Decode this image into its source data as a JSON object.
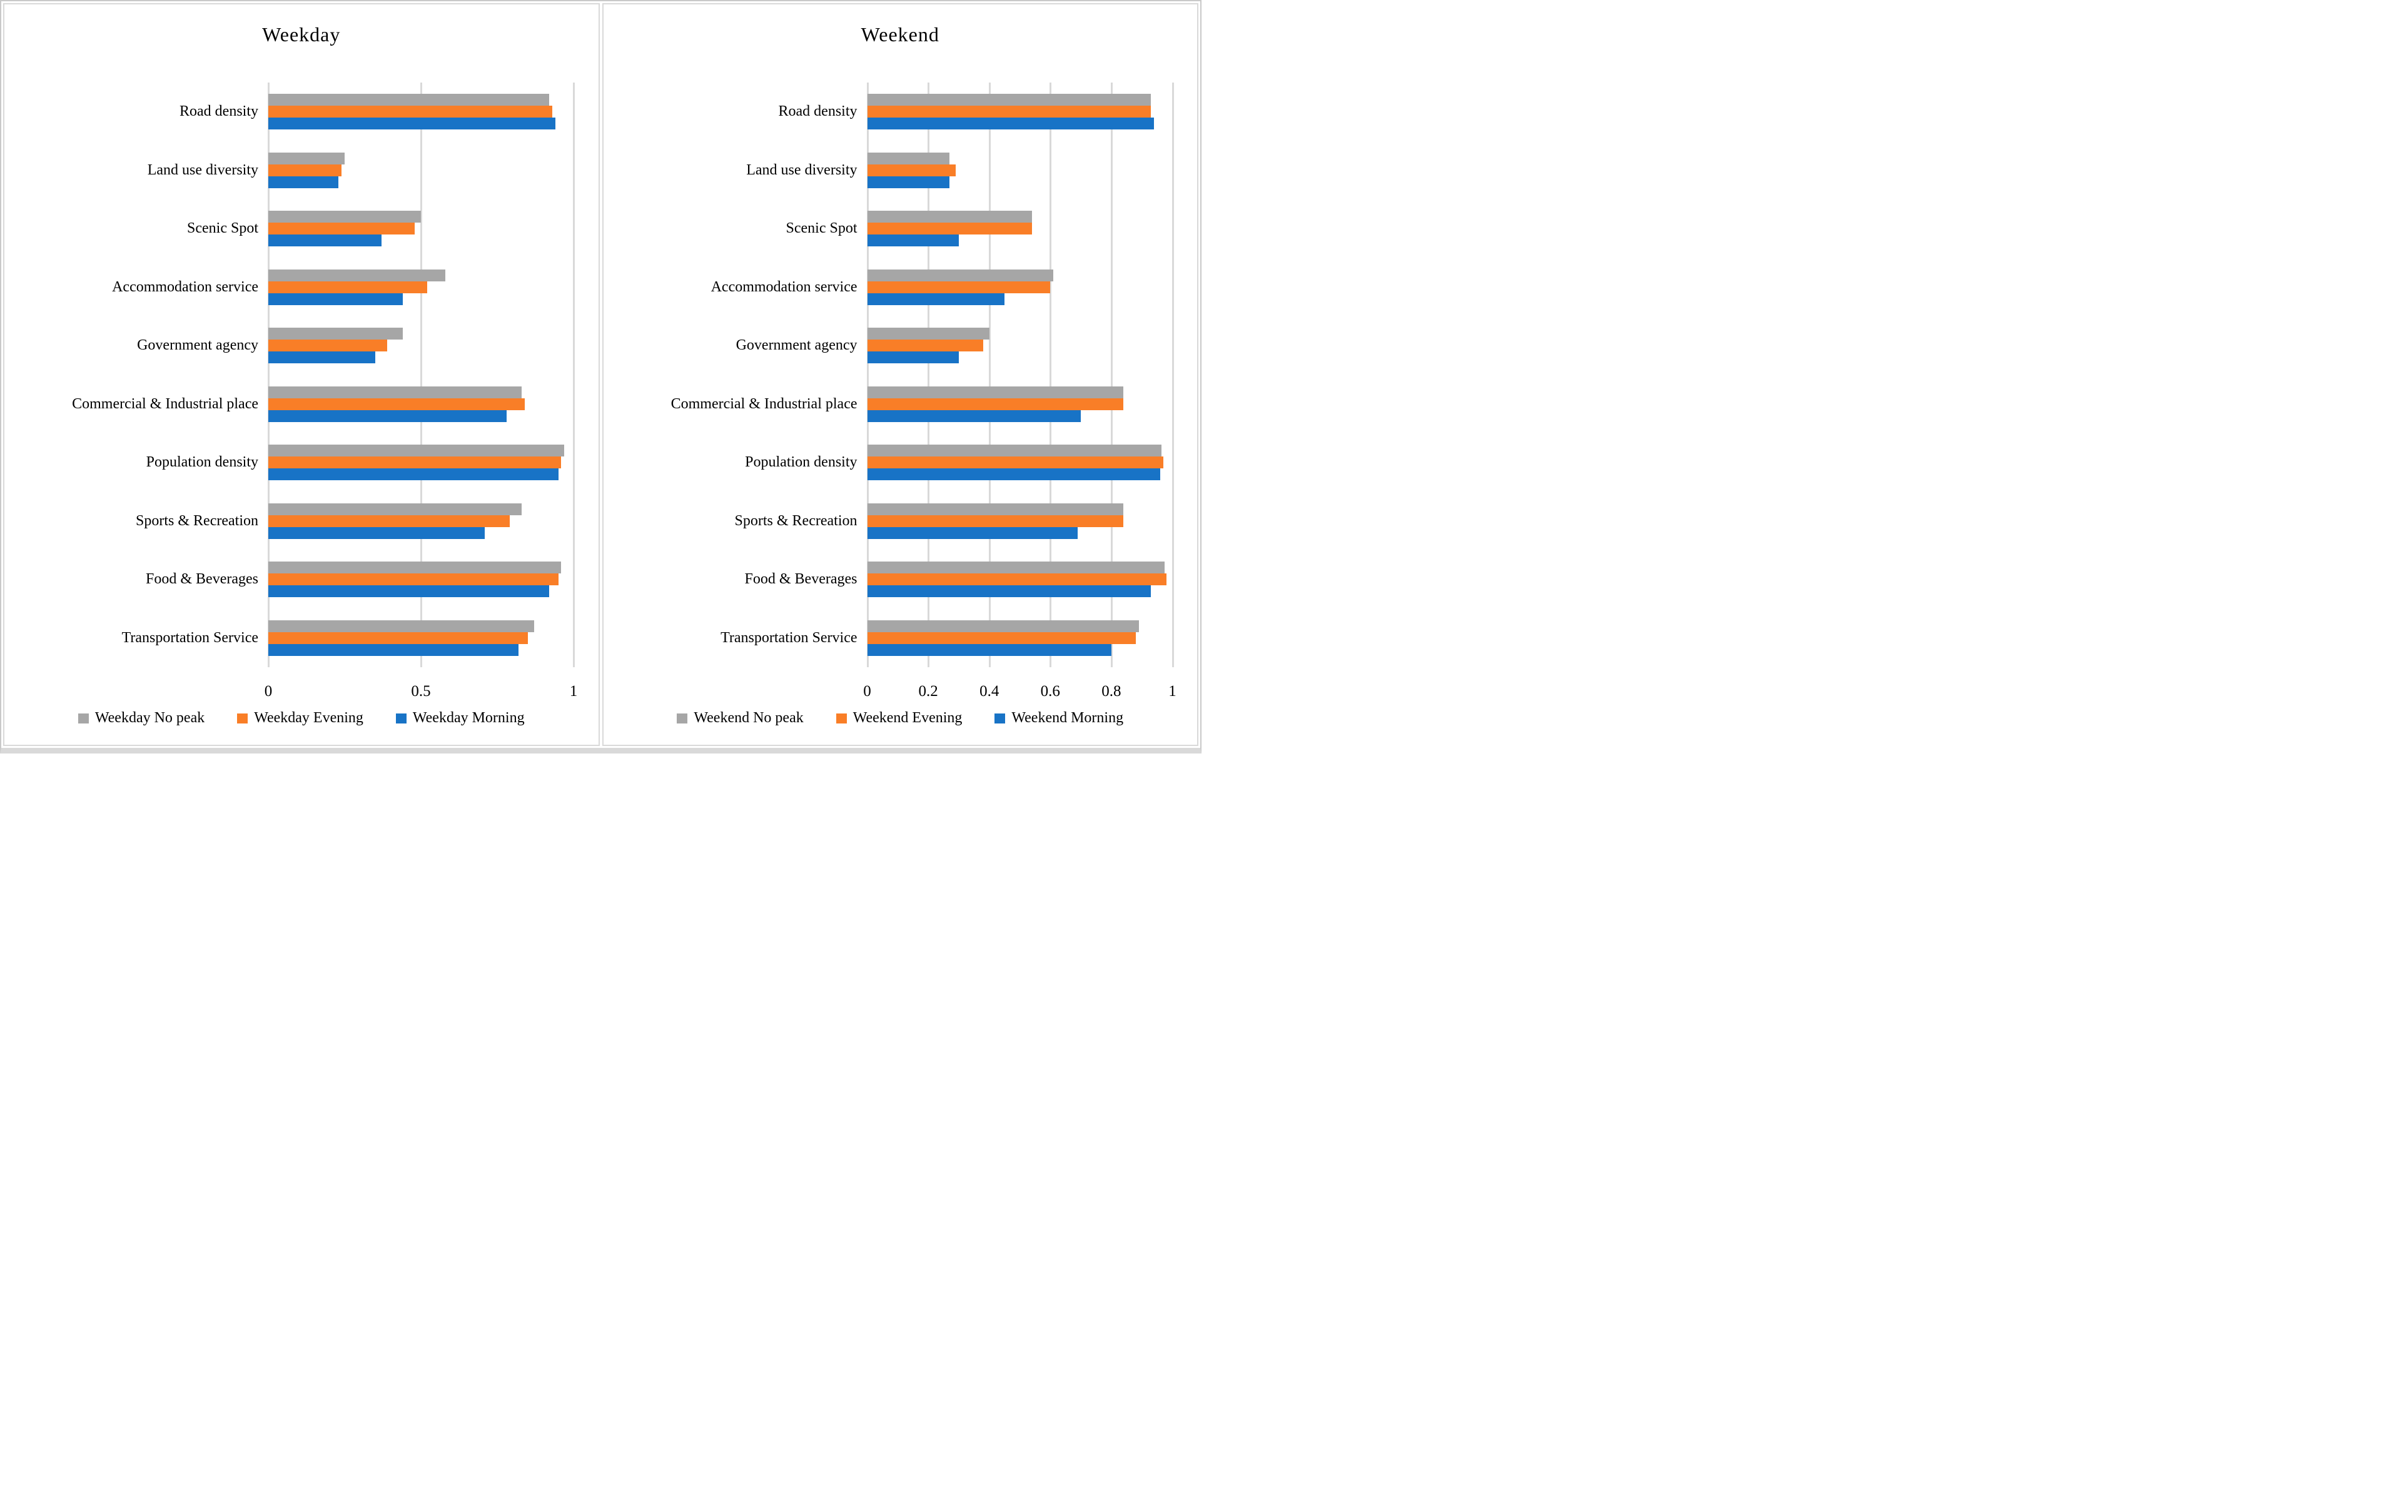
{
  "figure": {
    "background": "#ffffff",
    "border_color": "#c9c9c9",
    "panel_border_color": "#d9d9d9",
    "gridline_color": "#d9d9d9"
  },
  "chart_data": [
    {
      "type": "bar",
      "orientation": "horizontal",
      "title": "Weekday",
      "grid": true,
      "legend_position": "bottom",
      "xlim": [
        0,
        1
      ],
      "gridlines": [
        0,
        0.5,
        1
      ],
      "xticks": [
        {
          "value": 0,
          "label": "0"
        },
        {
          "value": 0.5,
          "label": "0.5"
        },
        {
          "value": 1,
          "label": "1"
        }
      ],
      "categories": [
        "Road density",
        "Land use diversity",
        "Scenic Spot",
        "Accommodation service",
        "Government agency",
        "Commercial & Industrial place",
        "Population density",
        "Sports & Recreation",
        "Food & Beverages",
        "Transportation Service"
      ],
      "series": [
        {
          "name": "Weekday No peak",
          "color": "#A6A6A6",
          "values": [
            0.92,
            0.25,
            0.5,
            0.58,
            0.44,
            0.83,
            0.97,
            0.83,
            0.96,
            0.87
          ]
        },
        {
          "name": "Weekday Evening",
          "color": "#F97E27",
          "values": [
            0.93,
            0.24,
            0.48,
            0.52,
            0.39,
            0.84,
            0.96,
            0.79,
            0.95,
            0.85
          ]
        },
        {
          "name": "Weekday Morning",
          "color": "#1873C6",
          "values": [
            0.94,
            0.23,
            0.37,
            0.44,
            0.35,
            0.78,
            0.95,
            0.71,
            0.92,
            0.82
          ]
        }
      ]
    },
    {
      "type": "bar",
      "orientation": "horizontal",
      "title": "Weekend",
      "grid": true,
      "legend_position": "bottom",
      "xlim": [
        0,
        1
      ],
      "gridlines": [
        0,
        0.2,
        0.4,
        0.6,
        0.8,
        1
      ],
      "xticks": [
        {
          "value": 0,
          "label": "0"
        },
        {
          "value": 0.2,
          "label": "0.2"
        },
        {
          "value": 0.4,
          "label": "0.4"
        },
        {
          "value": 0.6,
          "label": "0.6"
        },
        {
          "value": 0.8,
          "label": "0.8"
        },
        {
          "value": 1,
          "label": "1"
        }
      ],
      "categories": [
        "Road density",
        "Land use diversity",
        "Scenic Spot",
        "Accommodation service",
        "Government agency",
        "Commercial & Industrial place",
        "Population density",
        "Sports & Recreation",
        "Food & Beverages",
        "Transportation Service"
      ],
      "series": [
        {
          "name": "Weekend No peak",
          "color": "#A6A6A6",
          "values": [
            0.93,
            0.27,
            0.54,
            0.61,
            0.4,
            0.84,
            0.965,
            0.84,
            0.975,
            0.89
          ]
        },
        {
          "name": "Weekend Evening",
          "color": "#F97E27",
          "values": [
            0.93,
            0.29,
            0.54,
            0.6,
            0.38,
            0.84,
            0.97,
            0.84,
            0.98,
            0.88
          ]
        },
        {
          "name": "Weekend Morning",
          "color": "#1873C6",
          "values": [
            0.94,
            0.27,
            0.3,
            0.45,
            0.3,
            0.7,
            0.96,
            0.69,
            0.93,
            0.8
          ]
        }
      ]
    }
  ]
}
